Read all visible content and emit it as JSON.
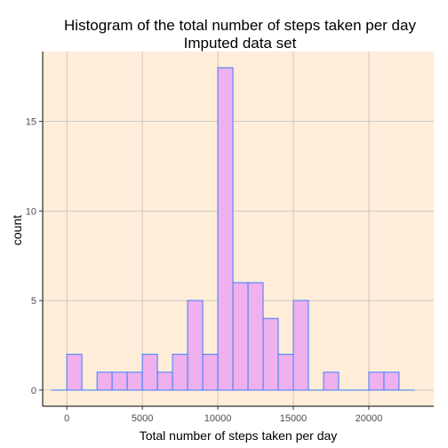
{
  "chart_data": {
    "type": "bar",
    "title": "Histogram of the total number of steps taken per day",
    "subtitle": "Imputed data set",
    "xlabel": "Total number of steps taken per day",
    "ylabel": "count",
    "xlim": [
      -1600,
      24300
    ],
    "ylim": [
      -0.9,
      18.9
    ],
    "x_ticks": [
      0,
      5000,
      10000,
      15000,
      20000
    ],
    "x_tick_labels": [
      "0",
      "5000",
      "10000",
      "15000",
      "20000"
    ],
    "y_ticks": [
      0,
      5,
      10,
      15
    ],
    "y_tick_labels": [
      "0",
      "5",
      "10",
      "15"
    ],
    "grid": true,
    "bin_width": 1000,
    "bins": [
      {
        "center": -500,
        "count": 0
      },
      {
        "center": 500,
        "count": 2
      },
      {
        "center": 1500,
        "count": 0
      },
      {
        "center": 2500,
        "count": 1
      },
      {
        "center": 3500,
        "count": 1
      },
      {
        "center": 4500,
        "count": 1
      },
      {
        "center": 5500,
        "count": 2
      },
      {
        "center": 6500,
        "count": 1
      },
      {
        "center": 7500,
        "count": 2
      },
      {
        "center": 8500,
        "count": 5
      },
      {
        "center": 9500,
        "count": 2
      },
      {
        "center": 10500,
        "count": 18
      },
      {
        "center": 11500,
        "count": 6
      },
      {
        "center": 12500,
        "count": 6
      },
      {
        "center": 13500,
        "count": 4
      },
      {
        "center": 14500,
        "count": 2
      },
      {
        "center": 15500,
        "count": 5
      },
      {
        "center": 16500,
        "count": 0
      },
      {
        "center": 17500,
        "count": 1
      },
      {
        "center": 18500,
        "count": 0
      },
      {
        "center": 19500,
        "count": 0
      },
      {
        "center": 20500,
        "count": 1
      },
      {
        "center": 21500,
        "count": 1
      },
      {
        "center": 22500,
        "count": 0
      }
    ],
    "colors": {
      "panel_background": "#ffedd9",
      "grid": "#bebebe",
      "bar_fill": "#efb0ee",
      "bar_outline": "#3d7fff",
      "axis_line": "#000000",
      "tick_label": "#4d4d4d"
    }
  }
}
